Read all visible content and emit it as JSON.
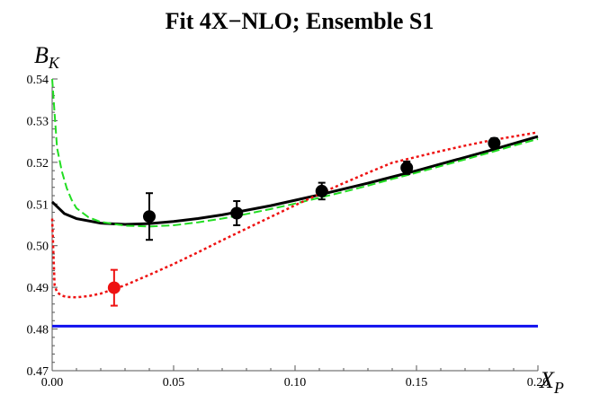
{
  "chart_data": {
    "type": "line",
    "title": "Fit 4X−NLO; Ensemble S1",
    "xlabel": "X",
    "xlabel_sub": "P",
    "ylabel": "B",
    "ylabel_sub": "K",
    "xlim": [
      0.0,
      0.2
    ],
    "ylim": [
      0.47,
      0.54
    ],
    "x_ticks": [
      0.0,
      0.05,
      0.1,
      0.15,
      0.2
    ],
    "x_tick_labels": [
      "0.00",
      "0.05",
      "0.10",
      "0.15",
      "0.20"
    ],
    "y_ticks": [
      0.47,
      0.48,
      0.49,
      0.5,
      0.51,
      0.52,
      0.53,
      0.54
    ],
    "y_tick_labels": [
      "0.47",
      "0.48",
      "0.49",
      "0.50",
      "0.51",
      "0.52",
      "0.53",
      "0.54"
    ],
    "grid": false,
    "series": [
      {
        "type": "line",
        "style": "solid",
        "color": "#000000",
        "x": [
          0.0,
          0.005,
          0.01,
          0.02,
          0.03,
          0.04,
          0.05,
          0.06,
          0.07,
          0.08,
          0.09,
          0.1,
          0.11,
          0.12,
          0.13,
          0.14,
          0.15,
          0.16,
          0.17,
          0.18,
          0.19,
          0.2
        ],
        "y": [
          0.5105,
          0.5077,
          0.5065,
          0.5054,
          0.5051,
          0.5053,
          0.5058,
          0.5065,
          0.5074,
          0.5085,
          0.5096,
          0.5109,
          0.5122,
          0.5136,
          0.515,
          0.5165,
          0.518,
          0.5196,
          0.5212,
          0.5228,
          0.5245,
          0.5262
        ]
      },
      {
        "type": "line",
        "style": "dashed",
        "color": "#22dd22",
        "x": [
          0.0,
          0.002,
          0.004,
          0.006,
          0.008,
          0.01,
          0.015,
          0.02,
          0.03,
          0.04,
          0.05,
          0.06,
          0.07,
          0.08,
          0.09,
          0.1,
          0.11,
          0.12,
          0.13,
          0.14,
          0.15,
          0.16,
          0.17,
          0.18,
          0.19,
          0.2
        ],
        "y": [
          0.54,
          0.5235,
          0.5178,
          0.5138,
          0.511,
          0.509,
          0.5068,
          0.5057,
          0.5048,
          0.5046,
          0.5049,
          0.5056,
          0.5065,
          0.5076,
          0.5088,
          0.5101,
          0.5115,
          0.5129,
          0.5144,
          0.516,
          0.5175,
          0.5191,
          0.5207,
          0.5223,
          0.524,
          0.5256
        ]
      },
      {
        "type": "line",
        "style": "dotted",
        "color": "#ee1111",
        "x": [
          0.0,
          0.001,
          0.002,
          0.004,
          0.006,
          0.01,
          0.015,
          0.02,
          0.03,
          0.04,
          0.05,
          0.06,
          0.07,
          0.08,
          0.09,
          0.1,
          0.11,
          0.12,
          0.13,
          0.14,
          0.15,
          0.16,
          0.17,
          0.18,
          0.19,
          0.2
        ],
        "y": [
          0.5065,
          0.4905,
          0.4888,
          0.488,
          0.4877,
          0.4876,
          0.4879,
          0.4885,
          0.4905,
          0.493,
          0.4956,
          0.4984,
          0.5013,
          0.5041,
          0.5069,
          0.5097,
          0.5124,
          0.515,
          0.5175,
          0.5199,
          0.5213,
          0.5227,
          0.524,
          0.5252,
          0.5262,
          0.5272
        ]
      },
      {
        "type": "line",
        "style": "solid",
        "color": "#1111ee",
        "x": [
          0.0,
          0.2
        ],
        "y": [
          0.4807,
          0.4807
        ]
      },
      {
        "type": "scatter",
        "color": "#000000",
        "x": [
          0.04,
          0.076,
          0.111,
          0.146,
          0.182
        ],
        "y": [
          0.507,
          0.5078,
          0.5131,
          0.5187,
          0.5246
        ],
        "yerr": [
          0.0056,
          0.0029,
          0.002,
          0.0015,
          0.0012
        ]
      },
      {
        "type": "scatter",
        "color": "#ee1111",
        "x": [
          0.0255
        ],
        "y": [
          0.4899
        ],
        "yerr": [
          0.0043
        ]
      }
    ]
  }
}
